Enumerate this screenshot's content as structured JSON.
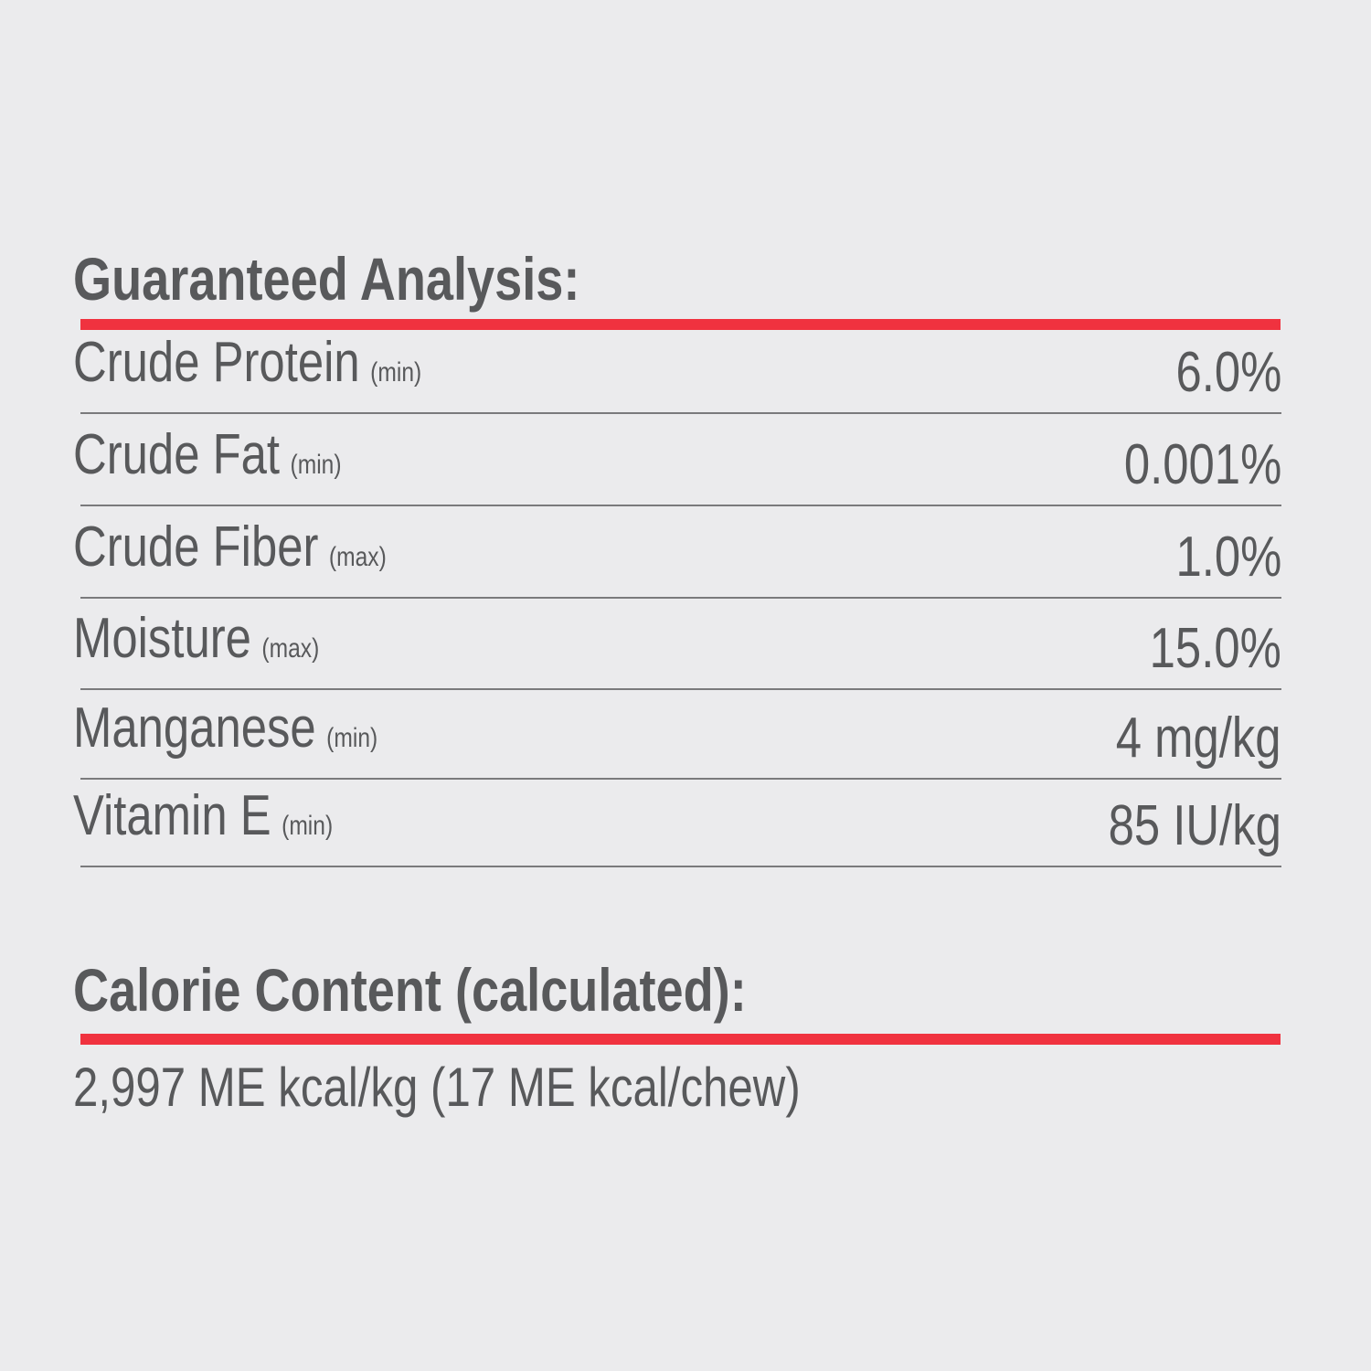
{
  "colors": {
    "background": "#ebebed",
    "text": "#58595b",
    "accent": "#f0323f"
  },
  "analysis": {
    "title": "Guaranteed Analysis:",
    "rows": [
      {
        "name": "Crude Protein",
        "qualifier": "(min)",
        "value": "6.0%"
      },
      {
        "name": "Crude Fat",
        "qualifier": "(min)",
        "value": "0.001%"
      },
      {
        "name": "Crude Fiber",
        "qualifier": "(max)",
        "value": "1.0%"
      },
      {
        "name": "Moisture",
        "qualifier": "(max)",
        "value": "15.0%"
      },
      {
        "name": "Manganese",
        "qualifier": "(min)",
        "value": "4 mg/kg"
      },
      {
        "name": "Vitamin E",
        "qualifier": "(min)",
        "value": "85 IU/kg"
      }
    ]
  },
  "calorie": {
    "title": "Calorie Content (calculated):",
    "value": "2,997 ME kcal/kg (17 ME kcal/chew)"
  }
}
